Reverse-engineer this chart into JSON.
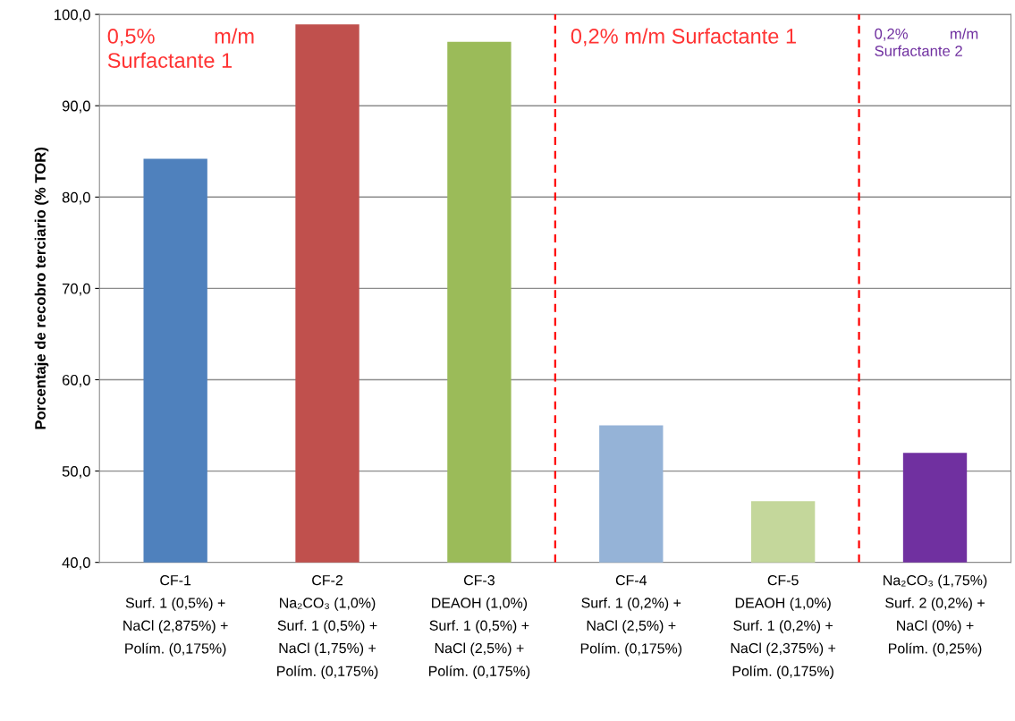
{
  "chart_data": {
    "type": "bar",
    "ylabel": "Porcentaje de recobro terciario (% TOR)",
    "categories": [
      "CF-1\nSurf. 1 (0,5%) +\nNaCl (2,875%) +\nPolím. (0,175%)",
      "CF-2\nNa₂CO₃ (1,0%)\nSurf. 1 (0,5%) +\nNaCl (1,75%) +\nPolím. (0,175%)",
      "CF-3\nDEAOH (1,0%)\nSurf. 1 (0,5%) +\nNaCl (2,5%) +\nPolím. (0,175%)",
      "CF-4\nSurf. 1 (0,2%) +\nNaCl (2,5%) +\nPolím. (0,175%)",
      "CF-5\nDEAOH (1,0%)\nSurf. 1 (0,2%) +\nNaCl (2,375%) +\nPolím. (0,175%)",
      "Na₂CO₃ (1,75%)\nSurf. 2 (0,2%) +\nNaCl (0%) +\nPolím. (0,25%)"
    ],
    "values": [
      84.2,
      98.9,
      97.0,
      55.0,
      46.7,
      52.0
    ],
    "colors": [
      "#4f81bd",
      "#c0504d",
      "#9bbb59",
      "#95b3d7",
      "#c4d79b",
      "#7030a0"
    ],
    "ylim": [
      40,
      100
    ],
    "yticks": [
      {
        "value": 40,
        "label": "40,0"
      },
      {
        "value": 50,
        "label": "50,0"
      },
      {
        "value": 60,
        "label": "60,0"
      },
      {
        "value": 70,
        "label": "70,0"
      },
      {
        "value": 80,
        "label": "80,0"
      },
      {
        "value": 90,
        "label": "90,0"
      },
      {
        "value": 100,
        "label": "100,0"
      }
    ],
    "grid": "y",
    "annotations": [
      "0,5%          m/m\nSurfactante 1",
      "0,2% m/m Surfactante 1",
      "0,2%          m/m\nSurfactante 2"
    ]
  }
}
